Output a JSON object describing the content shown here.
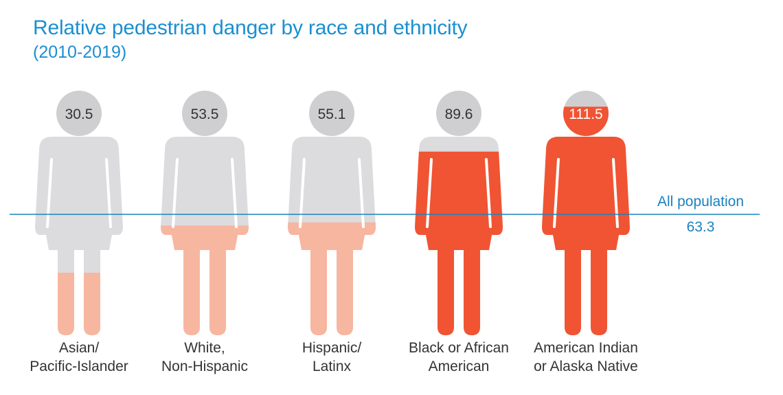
{
  "chart_data": {
    "type": "bar",
    "title": "Relative pedestrian danger by race and ethnicity",
    "subtitle": "(2010-2019)",
    "categories": [
      [
        "Asian/",
        "Pacific-Islander"
      ],
      [
        "White,",
        "Non-Hispanic"
      ],
      [
        "Hispanic/",
        "Latinx"
      ],
      [
        "Black or African",
        "American"
      ],
      [
        "American Indian",
        "or Alaska Native"
      ]
    ],
    "values": [
      30.5,
      53.5,
      55.1,
      89.6,
      111.5
    ],
    "value_labels": [
      "30.5",
      "53.5",
      "55.1",
      "89.6",
      "111.5"
    ],
    "reference_line": {
      "label": "All population",
      "value_label": "63.3",
      "value": 63.3
    },
    "ylim": [
      0,
      120
    ],
    "grid": false,
    "legend": "none"
  },
  "colors": {
    "title": "#1a8fd0",
    "reference_line": "#1a82c0",
    "empty": "#dcdcde",
    "head_empty": "#cfcfd1",
    "below_average_fill": "#f7b6a0",
    "above_average_fill": "#f05433",
    "value_text_dark": "#333333",
    "value_text_light": "#ffffff",
    "category_text": "#333333"
  }
}
